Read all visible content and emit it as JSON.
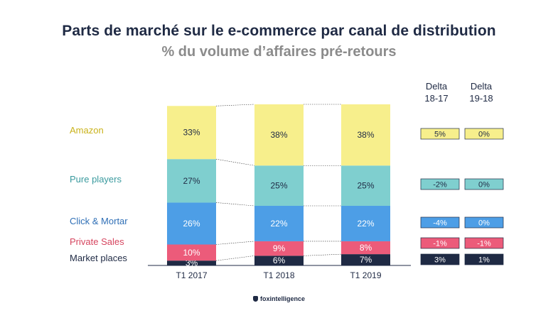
{
  "title": "Parts de marché sur le e-commerce par canal de distribution",
  "subtitle": "% du volume d’affaires pré-retours",
  "delta_headers": [
    "Delta\n18-17",
    "Delta\n19-18"
  ],
  "brand": "foxintelligence",
  "chart_data": {
    "type": "bar",
    "stacked": true,
    "categories": [
      "T1 2017",
      "T1 2018",
      "T1 2019"
    ],
    "series": [
      {
        "name": "Market places",
        "values": [
          3,
          6,
          7
        ],
        "labels": [
          "3%",
          "6%",
          "7%"
        ],
        "color": "#1f2a44",
        "label_color": "#1f2a44",
        "text_color": "#ffffff",
        "deltas": [
          "3%",
          "1%"
        ]
      },
      {
        "name": "Private Sales",
        "values": [
          10,
          9,
          8
        ],
        "labels": [
          "10%",
          "9%",
          "8%"
        ],
        "color": "#ec5b7a",
        "label_color": "#d6455f",
        "text_color": "#ffffff",
        "deltas": [
          "-1%",
          "-1%"
        ]
      },
      {
        "name": "Click & Mortar",
        "values": [
          26,
          22,
          22
        ],
        "labels": [
          "26%",
          "22%",
          "22%"
        ],
        "color": "#4d9ee6",
        "label_color": "#2f6fb6",
        "text_color": "#ffffff",
        "deltas": [
          "-4%",
          "0%"
        ]
      },
      {
        "name": "Pure players",
        "values": [
          27,
          25,
          25
        ],
        "labels": [
          "27%",
          "25%",
          "25%"
        ],
        "color": "#7fcfcf",
        "label_color": "#3a9a9e",
        "text_color": "#1f2a44",
        "deltas": [
          "-2%",
          "0%"
        ]
      },
      {
        "name": "Amazon",
        "values": [
          33,
          38,
          38
        ],
        "labels": [
          "33%",
          "38%",
          "38%"
        ],
        "color": "#f7ef8c",
        "label_color": "#c9b21a",
        "text_color": "#1f2a44",
        "deltas": [
          "5%",
          "0%"
        ]
      }
    ],
    "ylim": [
      0,
      100
    ],
    "legend": "left"
  }
}
